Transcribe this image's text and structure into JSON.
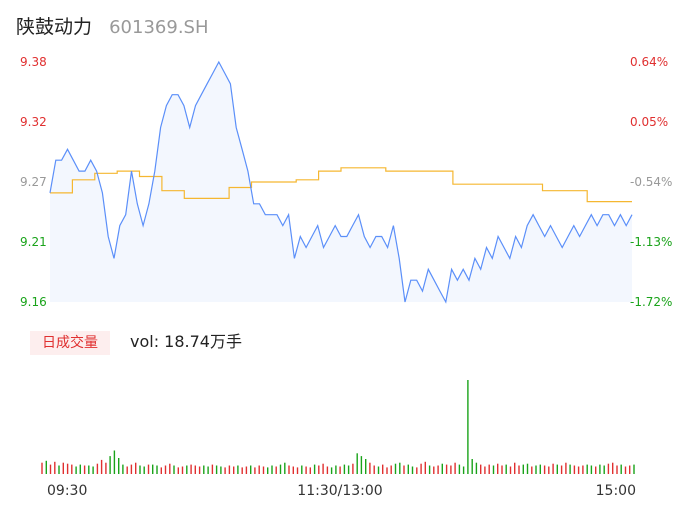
{
  "header": {
    "name": "陕鼓动力",
    "code": "601369.SH"
  },
  "volume_panel": {
    "tag": "日成交量",
    "label": "vol: 18.74万手"
  },
  "colors": {
    "up": "#e03030",
    "down": "#1aa31a",
    "neutral": "#999999",
    "price_line": "#5b8ff9",
    "avg_line": "#f5b731"
  },
  "chart_data": [
    {
      "type": "line",
      "y_ticks_left": [
        "9.38",
        "9.32",
        "9.27",
        "9.21",
        "9.16"
      ],
      "y_ticks_right": [
        "0.64%",
        "0.05%",
        "-0.54%",
        "-1.13%",
        "-1.72%"
      ],
      "x_ticks": [
        "09:30",
        "11:30/13:00",
        "15:00"
      ],
      "ylim": [
        9.16,
        9.38
      ],
      "series": [
        {
          "values": [
            9.26,
            9.29,
            9.29,
            9.3,
            9.29,
            9.28,
            9.28,
            9.29,
            9.28,
            9.26,
            9.22,
            9.2,
            9.23,
            9.24,
            9.28,
            9.25,
            9.23,
            9.25,
            9.28,
            9.32,
            9.34,
            9.35,
            9.35,
            9.34,
            9.32,
            9.34,
            9.35,
            9.36,
            9.37,
            9.38,
            9.37,
            9.36,
            9.32,
            9.3,
            9.28,
            9.25,
            9.25,
            9.24,
            9.24,
            9.24,
            9.23,
            9.24,
            9.2,
            9.22,
            9.21,
            9.22,
            9.23,
            9.21,
            9.22,
            9.23,
            9.22,
            9.22,
            9.23,
            9.24,
            9.22,
            9.21,
            9.22,
            9.22,
            9.21,
            9.23,
            9.2,
            9.16,
            9.18,
            9.18,
            9.17,
            9.19,
            9.18,
            9.17,
            9.16,
            9.19,
            9.18,
            9.19,
            9.18,
            9.2,
            9.19,
            9.21,
            9.2,
            9.22,
            9.21,
            9.2,
            9.22,
            9.21,
            9.23,
            9.24,
            9.23,
            9.22,
            9.23,
            9.22,
            9.21,
            9.22,
            9.23,
            9.22,
            9.23,
            9.24,
            9.23,
            9.24,
            9.24,
            9.23,
            9.24,
            9.23,
            9.24
          ]
        },
        {
          "values": [
            9.26,
            9.272,
            9.278,
            9.28,
            9.275,
            9.262,
            9.255,
            9.255,
            9.265,
            9.27,
            9.27,
            9.272,
            9.28,
            9.283,
            9.283,
            9.28,
            9.28,
            9.28,
            9.268,
            9.268,
            9.268,
            9.268,
            9.262,
            9.262,
            9.252,
            9.252
          ]
        }
      ]
    },
    {
      "type": "bar",
      "values": [
        12,
        14,
        10,
        13,
        9,
        12,
        11,
        10,
        8,
        10,
        9,
        9,
        8,
        11,
        15,
        12,
        19,
        25,
        17,
        10,
        8,
        10,
        12,
        9,
        8,
        10,
        10,
        9,
        7,
        9,
        11,
        9,
        7,
        8,
        9,
        10,
        9,
        8,
        9,
        8,
        10,
        9,
        8,
        7,
        9,
        8,
        9,
        7,
        8,
        9,
        7,
        9,
        8,
        7,
        9,
        8,
        10,
        12,
        9,
        8,
        7,
        9,
        8,
        7,
        10,
        9,
        11,
        8,
        7,
        9,
        8,
        10,
        9,
        11,
        22,
        19,
        16,
        12,
        9,
        8,
        10,
        7,
        9,
        11,
        12,
        9,
        10,
        8,
        7,
        11,
        13,
        9,
        8,
        9,
        11,
        10,
        9,
        12,
        10,
        8,
        100,
        16,
        12,
        10,
        8,
        10,
        9,
        11,
        9,
        10,
        8,
        12,
        9,
        10,
        11,
        8,
        9,
        10,
        9,
        8,
        11,
        10,
        9,
        12,
        10,
        9,
        8,
        9,
        10,
        9,
        8,
        10,
        9,
        11,
        12,
        9,
        10,
        8,
        9,
        10
      ]
    }
  ]
}
